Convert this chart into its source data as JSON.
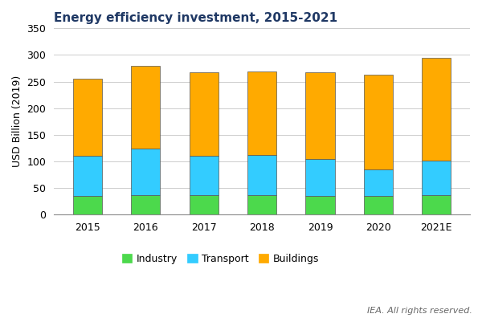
{
  "title": "Energy efficiency investment, 2015-2021",
  "ylabel": "USD Billion (2019)",
  "categories": [
    "2015",
    "2016",
    "2017",
    "2018",
    "2019",
    "2020",
    "2021E"
  ],
  "industry": [
    35,
    37,
    37,
    37,
    35,
    35,
    37
  ],
  "transport": [
    76,
    87,
    73,
    75,
    70,
    50,
    64
  ],
  "buildings": [
    144,
    155,
    157,
    157,
    162,
    178,
    194
  ],
  "color_industry": "#4cd94c",
  "color_transport": "#33ccff",
  "color_buildings": "#ffaa00",
  "ylim": [
    0,
    350
  ],
  "yticks": [
    0,
    50,
    100,
    150,
    200,
    250,
    300,
    350
  ],
  "legend_labels": [
    "Industry",
    "Transport",
    "Buildings"
  ],
  "footnote": "IEA. All rights reserved.",
  "bar_width": 0.5,
  "title_fontsize": 11,
  "title_color": "#1f3864",
  "axis_fontsize": 9,
  "tick_fontsize": 9,
  "legend_fontsize": 9,
  "footnote_fontsize": 8,
  "edge_color": "#555555",
  "edge_linewidth": 0.5
}
